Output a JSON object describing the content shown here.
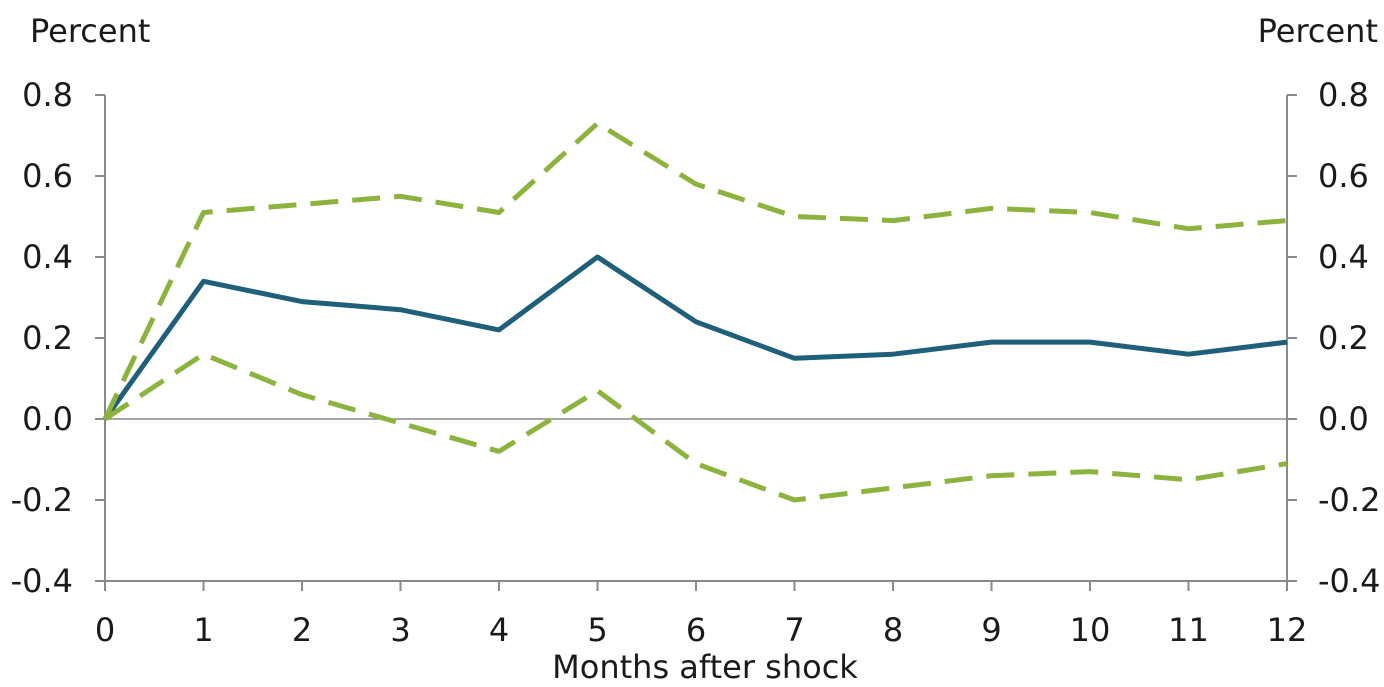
{
  "chart_data": {
    "type": "line",
    "ylabel_left": "Percent",
    "ylabel_right": "Percent",
    "xlabel": "Months after shock",
    "x": [
      0,
      1,
      2,
      3,
      4,
      5,
      6,
      7,
      8,
      9,
      10,
      11,
      12
    ],
    "x_tick_labels": [
      "0",
      "1",
      "2",
      "3",
      "4",
      "5",
      "6",
      "7",
      "8",
      "9",
      "10",
      "11",
      "12"
    ],
    "y_tick_labels": [
      "0.8",
      "0.6",
      "0.4",
      "0.2",
      "0.0",
      "-0.2",
      "-0.4"
    ],
    "y_ticks": [
      0.8,
      0.6,
      0.4,
      0.2,
      0.0,
      -0.2,
      -0.4
    ],
    "ylim": [
      -0.4,
      0.8
    ],
    "xlim": [
      0,
      12
    ],
    "grid": false,
    "zero_line": true,
    "colors": {
      "point_estimate": "#1f5f7a",
      "bands": "#8db33f",
      "axis": "#8a8a8a"
    },
    "series": [
      {
        "values": [
          0.0,
          0.34,
          0.29,
          0.27,
          0.22,
          0.4,
          0.24,
          0.15,
          0.16,
          0.19,
          0.19,
          0.16,
          0.19
        ],
        "style": "solid",
        "color": "#1f5f7a"
      },
      {
        "values": [
          0.0,
          0.51,
          0.53,
          0.55,
          0.51,
          0.73,
          0.58,
          0.5,
          0.49,
          0.52,
          0.51,
          0.47,
          0.49
        ],
        "style": "dashed",
        "color": "#8db33f"
      },
      {
        "values": [
          0.0,
          0.16,
          0.06,
          -0.01,
          -0.08,
          0.07,
          -0.11,
          -0.2,
          -0.17,
          -0.14,
          -0.13,
          -0.15,
          -0.11
        ],
        "style": "dashed",
        "color": "#8db33f"
      }
    ]
  }
}
